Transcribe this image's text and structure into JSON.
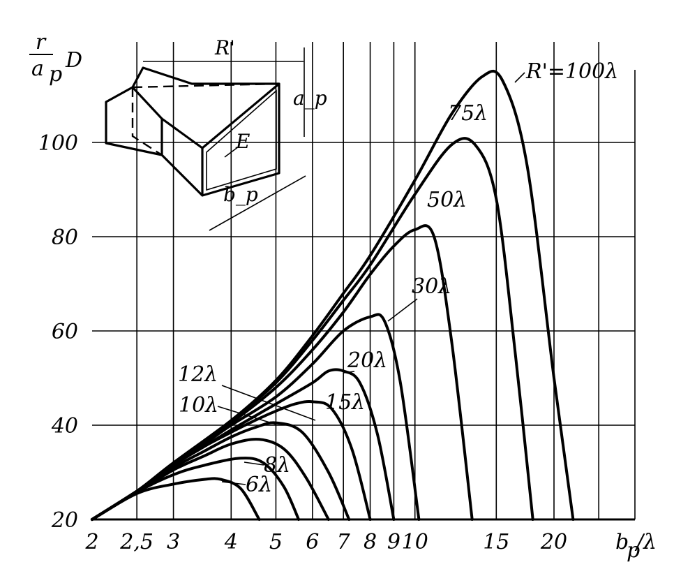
{
  "chart_data": {
    "type": "line",
    "xscale": "log",
    "grid": true,
    "xlabel": "b_p/λ",
    "ylabel": "r/a_p D",
    "xlim": [
      2,
      30
    ],
    "ylim": [
      20,
      115
    ],
    "x_ticks": [
      2,
      2.5,
      3,
      4,
      5,
      6,
      7,
      8,
      9,
      10,
      15,
      20
    ],
    "x_tick_labels": [
      "2",
      "2,5",
      "3",
      "4",
      "5",
      "6",
      "7",
      "8",
      "9",
      "10",
      "15",
      "20"
    ],
    "y_ticks": [
      20,
      40,
      60,
      80,
      100
    ],
    "y_tick_labels": [
      "20",
      "40",
      "60",
      "80",
      "100"
    ],
    "series": [
      {
        "name": "6λ",
        "x": [
          2,
          2.5,
          3,
          3.5,
          3.8,
          4.2,
          4.6
        ],
        "y": [
          20,
          25.5,
          27.5,
          28.5,
          28.5,
          26.5,
          20
        ]
      },
      {
        "name": "8λ",
        "x": [
          2,
          2.5,
          3,
          3.5,
          4.2,
          4.7,
          5.2,
          5.6
        ],
        "y": [
          20,
          25.8,
          29.5,
          31.5,
          33,
          32,
          27,
          20
        ]
      },
      {
        "name": "10λ",
        "x": [
          2,
          2.5,
          3,
          3.5,
          4,
          4.6,
          5.2,
          5.8,
          6.5
        ],
        "y": [
          20,
          25.8,
          30.5,
          33.5,
          36,
          37,
          35,
          29,
          20
        ]
      },
      {
        "name": "12λ",
        "x": [
          2,
          2.5,
          3,
          3.5,
          4,
          4.5,
          5,
          5.7,
          6.5,
          7.2
        ],
        "y": [
          20,
          26,
          31,
          34.5,
          37.5,
          39.5,
          40.5,
          38.5,
          30,
          20
        ]
      },
      {
        "name": "15λ",
        "x": [
          2,
          2.5,
          3,
          3.5,
          4,
          4.5,
          5,
          5.5,
          6,
          6.6,
          7.3,
          8
        ],
        "y": [
          20,
          26,
          31.5,
          35.5,
          38.5,
          41,
          43,
          44.5,
          45,
          43.5,
          35,
          20
        ]
      },
      {
        "name": "20λ",
        "x": [
          2,
          2.5,
          3,
          3.5,
          4,
          5,
          6,
          6.5,
          7,
          7.6,
          8.3,
          9
        ],
        "y": [
          20,
          26,
          31.5,
          35.5,
          39,
          44.5,
          49,
          51.5,
          51.5,
          49,
          38,
          20
        ]
      },
      {
        "name": "30λ",
        "x": [
          2,
          2.5,
          3,
          3.5,
          4,
          5,
          6,
          7,
          8,
          8.6,
          9.3,
          10.2
        ],
        "y": [
          20,
          26,
          31.5,
          36,
          40,
          46,
          53,
          60,
          63,
          62,
          49,
          20
        ]
      },
      {
        "name": "50λ",
        "x": [
          2,
          2.5,
          3,
          4,
          5,
          6,
          7,
          8,
          9,
          10,
          11,
          12,
          13.3
        ],
        "y": [
          20,
          26,
          32,
          40.5,
          48,
          56,
          64,
          72,
          78,
          81.5,
          80,
          58,
          20
        ]
      },
      {
        "name": "75λ",
        "x": [
          2,
          2.5,
          3,
          4,
          5,
          6,
          7,
          8,
          10,
          12,
          13.5,
          15,
          16.5,
          18
        ],
        "y": [
          20,
          26,
          32,
          41,
          49,
          58,
          66.5,
          74,
          89,
          99.5,
          99.5,
          88,
          55,
          20
        ]
      },
      {
        "name": "R'=100λ",
        "x": [
          2,
          2.5,
          3,
          4,
          5,
          6,
          7,
          8,
          10,
          12,
          14,
          15.5,
          17.5,
          20,
          22
        ],
        "y": [
          20,
          26,
          32,
          41,
          49.5,
          59,
          68,
          76,
          92,
          106,
          114,
          113,
          95,
          50,
          20
        ]
      }
    ]
  },
  "sketch": {
    "label_R": "R'",
    "label_a": "a_p",
    "label_b": "b_p",
    "label_E": "E"
  }
}
